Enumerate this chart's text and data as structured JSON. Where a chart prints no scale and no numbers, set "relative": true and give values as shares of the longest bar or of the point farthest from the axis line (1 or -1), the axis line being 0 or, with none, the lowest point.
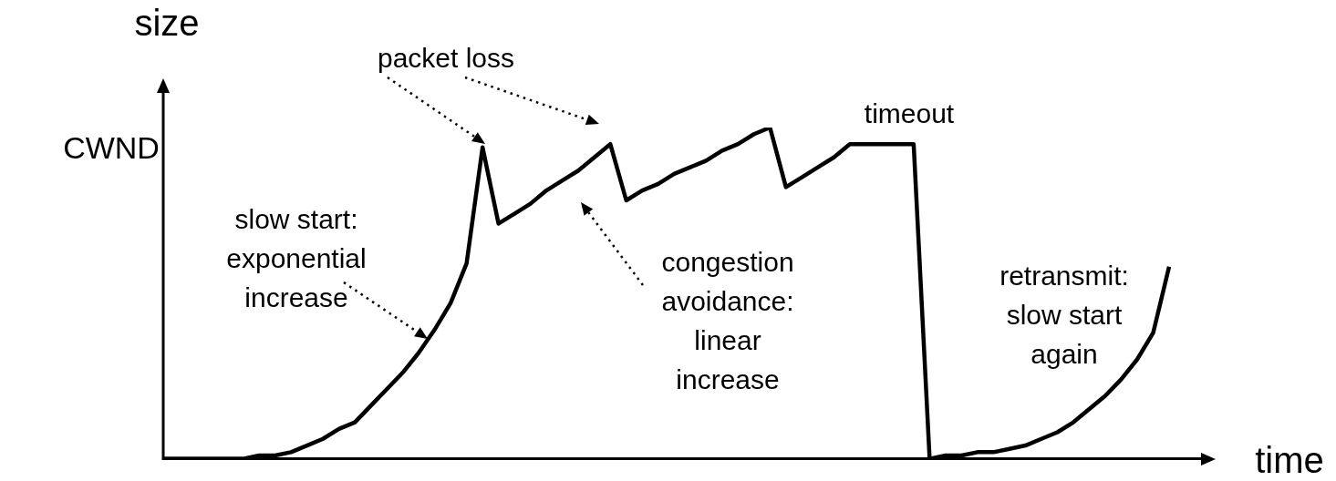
{
  "chart_data": {
    "type": "line",
    "relative": true,
    "ylabel": "size",
    "xlabel": "time",
    "categories": [
      null,
      null,
      null,
      null,
      null,
      null,
      null,
      null,
      null,
      null,
      null,
      null,
      null,
      null,
      null,
      null,
      null,
      null,
      null,
      null,
      null,
      null,
      null,
      null,
      null,
      null,
      null,
      null,
      null,
      null,
      null,
      null,
      null,
      null,
      null,
      null,
      null,
      null,
      null,
      null,
      null,
      null,
      null,
      null,
      null,
      null,
      null,
      null,
      null,
      null,
      null,
      null,
      null,
      null,
      null,
      null,
      null,
      null,
      null,
      null,
      null,
      null,
      null,
      null
    ],
    "series": [
      {
        "color": "#000000",
        "values": [
          0,
          0,
          0,
          0,
          0,
          0,
          0.01,
          0.01,
          0.02,
          0.04,
          0.06,
          0.09,
          0.11,
          0.16,
          0.21,
          0.26,
          0.32,
          0.39,
          0.47,
          0.59,
          0.94,
          0.71,
          0.74,
          0.77,
          0.81,
          0.84,
          0.87,
          0.91,
          0.95,
          0.78,
          0.81,
          0.83,
          0.86,
          0.88,
          0.9,
          0.93,
          0.95,
          0.98,
          1,
          0.82,
          0.85,
          0.88,
          0.91,
          0.95,
          0.95,
          0.95,
          0.95,
          0.95,
          0,
          0.01,
          0.01,
          0.02,
          0.02,
          0.03,
          0.04,
          0.06,
          0.08,
          0.11,
          0.15,
          0.19,
          0.24,
          0.3,
          0.38,
          0.58
        ]
      }
    ],
    "annotations": [
      "CWND",
      "packet loss",
      "timeout",
      "slow start: exponential increase",
      "congestion avoidance: linear increase",
      "retransmit: slow start again"
    ],
    "legend": false,
    "grid": false,
    "marker": "none",
    "line_style": "solid"
  }
}
